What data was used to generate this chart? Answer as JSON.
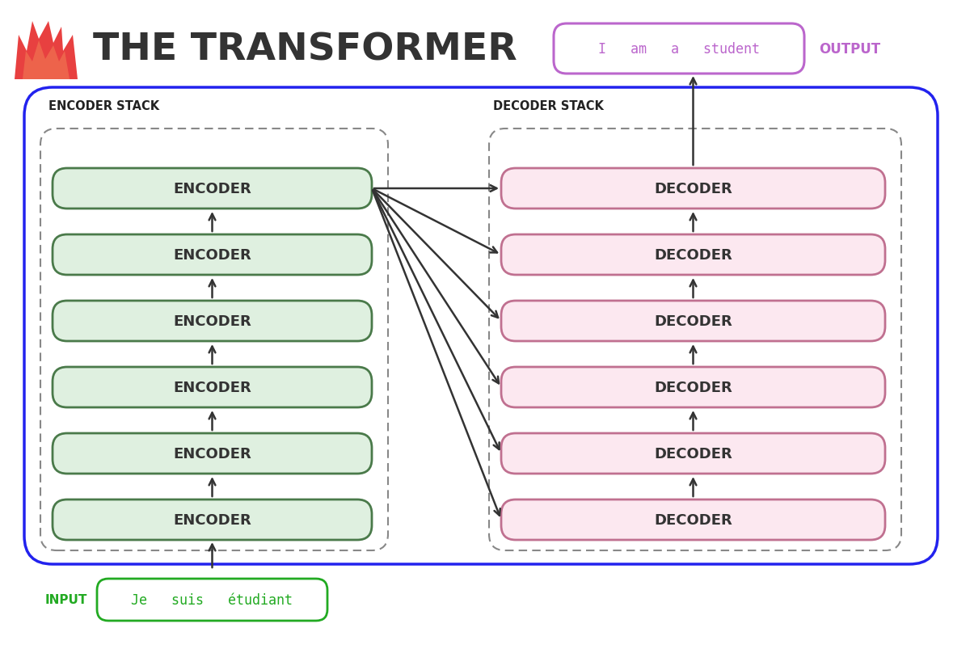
{
  "title": "THE TRANSFORMER",
  "title_color": "#333333",
  "title_fontsize": 34,
  "background_color": "#ffffff",
  "encoder_label": "ENCODER STACK",
  "decoder_label": "DECODER STACK",
  "encoder_box_facecolor": "#dff0e0",
  "encoder_box_edgecolor": "#4a7a4a",
  "decoder_box_facecolor": "#fce8f0",
  "decoder_box_edgecolor": "#c07090",
  "encoder_count": 6,
  "decoder_count": 6,
  "input_text": "Je   suis   étudiant",
  "input_label": "INPUT",
  "input_box_facecolor": "#ffffff",
  "input_box_edgecolor": "#22aa22",
  "input_text_color": "#22aa22",
  "input_label_color": "#22aa22",
  "output_text": "I   am   a   student",
  "output_label": "OUTPUT",
  "output_box_facecolor": "#ffffff",
  "output_box_edgecolor": "#bb66cc",
  "output_text_color": "#bb66cc",
  "output_label_color": "#bb66cc",
  "outer_box_edgecolor": "#2222ee",
  "arrow_color": "#333333",
  "dashed_box_edgecolor": "#888888",
  "stack_label_color": "#222222",
  "flame_color1": "#e84040",
  "flame_color2": "#f07050"
}
